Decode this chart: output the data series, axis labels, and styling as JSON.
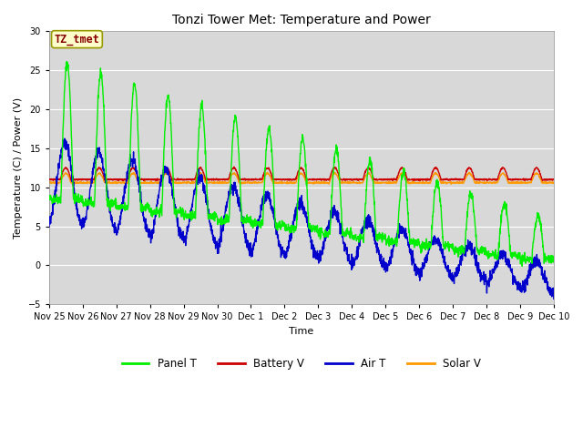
{
  "title": "Tonzi Tower Met: Temperature and Power",
  "xlabel": "Time",
  "ylabel": "Temperature (C) / Power (V)",
  "ylim": [
    -5,
    30
  ],
  "yticks": [
    -5,
    0,
    5,
    10,
    15,
    20,
    25,
    30
  ],
  "plot_bg_color": "#d8d8d8",
  "fig_bg_color": "#ffffff",
  "grid_color": "#ffffff",
  "annotation_text": "TZ_tmet",
  "annotation_bg": "#ffffcc",
  "annotation_border": "#999900",
  "annotation_text_color": "#880000",
  "legend_labels": [
    "Panel T",
    "Battery V",
    "Air T",
    "Solar V"
  ],
  "legend_colors": [
    "#00ee00",
    "#cc0000",
    "#0000cc",
    "#ff9900"
  ],
  "line_width": 1.0,
  "x_tick_labels": [
    "Nov 25",
    "Nov 26",
    "Nov 27",
    "Nov 28",
    "Nov 29",
    "Nov 30",
    "Dec 1",
    "Dec 2",
    "Dec 3",
    "Dec 4",
    "Dec 5",
    "Dec 6",
    "Dec 7",
    "Dec 8",
    "Dec 9",
    "Dec 10"
  ],
  "title_fontsize": 10,
  "axis_fontsize": 8,
  "tick_fontsize": 7
}
